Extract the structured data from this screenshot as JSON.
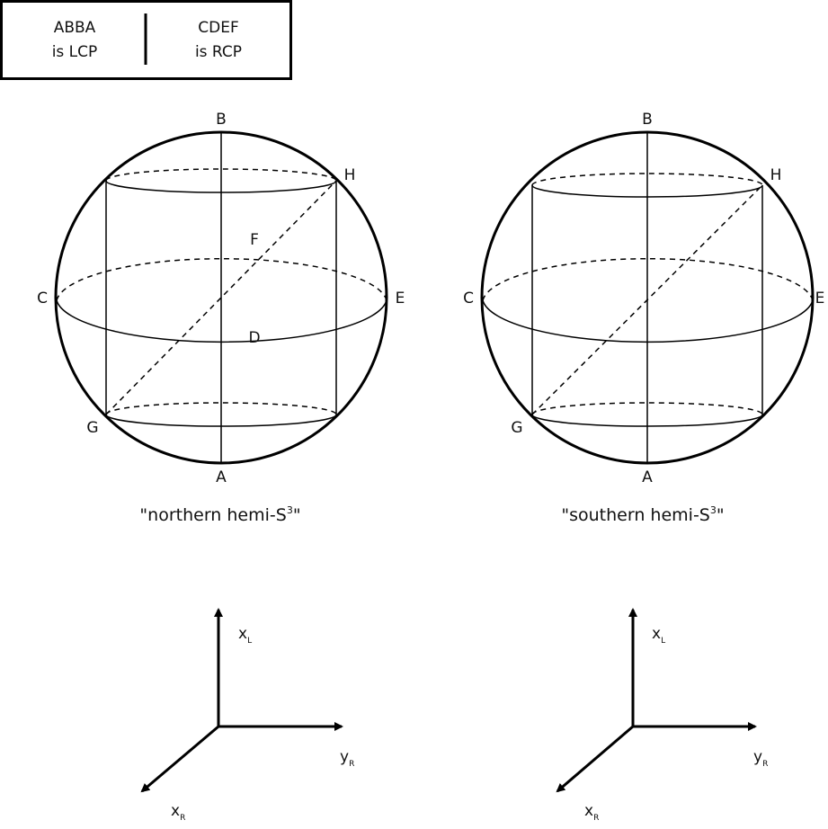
{
  "legend": {
    "left_line1": "ABBA",
    "left_line2": "is LCP",
    "right_line1": "CDEF",
    "right_line2": "is RCP"
  },
  "left_sphere": {
    "label_B": "B",
    "label_A": "A",
    "label_C": "C",
    "label_E": "E",
    "label_F": "F",
    "label_D": "D",
    "label_G": "G",
    "label_H": "H",
    "caption_main": "\"northern hemi-S",
    "caption_sup": "3",
    "caption_end": "\""
  },
  "right_sphere": {
    "label_B": "B",
    "label_A": "A",
    "label_C": "C",
    "label_E": "E",
    "label_G": "G",
    "label_H": "H",
    "caption_main": "\"southern hemi-S",
    "caption_sup": "3",
    "caption_end": "\""
  },
  "left_axes": {
    "up_main": "x",
    "up_sub": "L",
    "right_main": "y",
    "right_sub": "R",
    "diag_main": "x",
    "diag_sub": "R"
  },
  "right_axes": {
    "up_main": "x",
    "up_sub": "L",
    "right_main": "y",
    "right_sub": "R",
    "diag_main": "x",
    "diag_sub": "R"
  }
}
